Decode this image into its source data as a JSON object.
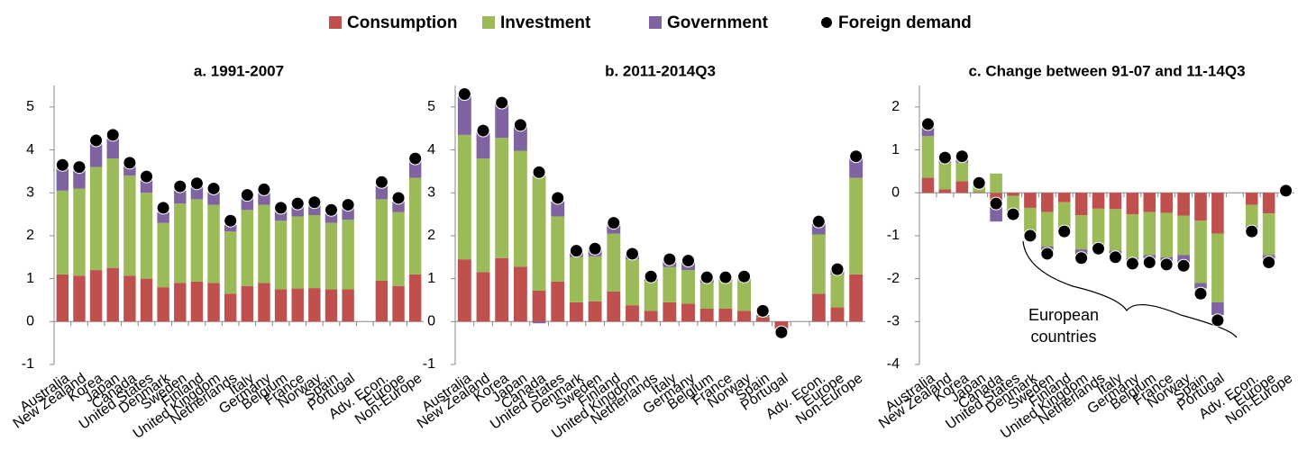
{
  "chart_data": [
    {
      "type": "bar",
      "stacked": true,
      "title": "a. 1991-2007",
      "categories": [
        "Australia",
        "New Zealand",
        "Korea",
        "Japan",
        "Canada",
        "United States",
        "Denmark",
        "Sweden",
        "Finland",
        "United Kingdom",
        "Netherlands",
        "Italy",
        "Germany",
        "Belgium",
        "France",
        "Norway",
        "Spain",
        "Portugal",
        null,
        "Adv. Econ.",
        "Europe",
        "Non-Europe"
      ],
      "ylim": [
        -1,
        5.5
      ],
      "yticks": [
        -1,
        0,
        1,
        2,
        3,
        4,
        5
      ],
      "series": [
        {
          "name": "Consumption",
          "color": "#c0504d",
          "values": [
            1.1,
            1.07,
            1.2,
            1.25,
            1.07,
            1.0,
            0.8,
            0.9,
            0.93,
            0.9,
            0.65,
            0.83,
            0.9,
            0.75,
            0.77,
            0.78,
            0.75,
            0.75,
            null,
            0.95,
            0.83,
            1.1
          ]
        },
        {
          "name": "Investment",
          "color": "#9bbb59",
          "values": [
            1.95,
            2.03,
            2.4,
            2.55,
            2.33,
            2.0,
            1.5,
            1.85,
            1.92,
            1.82,
            1.45,
            1.77,
            1.82,
            1.6,
            1.68,
            1.7,
            1.55,
            1.62,
            null,
            1.9,
            1.72,
            2.25
          ]
        },
        {
          "name": "Government",
          "color": "#8064a2",
          "values": [
            0.6,
            0.5,
            0.6,
            0.5,
            0.25,
            0.3,
            0.25,
            0.3,
            0.3,
            0.3,
            0.15,
            0.3,
            0.28,
            0.25,
            0.25,
            0.25,
            0.22,
            0.28,
            null,
            0.3,
            0.25,
            0.4
          ]
        },
        {
          "name": "Foreign demand",
          "color": "#000000",
          "type": "dot",
          "values": [
            3.65,
            3.6,
            4.22,
            4.35,
            3.7,
            3.38,
            2.65,
            3.15,
            3.22,
            3.1,
            2.35,
            2.95,
            3.08,
            2.65,
            2.75,
            2.78,
            2.6,
            2.72,
            null,
            3.25,
            2.88,
            3.8
          ]
        }
      ]
    },
    {
      "type": "bar",
      "stacked": true,
      "title": "b. 2011-2014Q3",
      "categories": [
        "Australia",
        "New Zealand",
        "Korea",
        "Japan",
        "Canada",
        "United States",
        "Denmark",
        "Sweden",
        "Finland",
        "United Kingdom",
        "Netherlands",
        "Italy",
        "Germany",
        "Belgium",
        "France",
        "Norway",
        "Spain",
        "Portugal",
        null,
        "Adv. Econ.",
        "Europe",
        "Non-Europe"
      ],
      "ylim": [
        -1,
        5.5
      ],
      "yticks": [
        -1,
        0,
        1,
        2,
        3,
        4,
        5
      ],
      "series": [
        {
          "name": "Consumption",
          "color": "#c0504d",
          "values": [
            1.45,
            1.15,
            1.48,
            1.28,
            0.72,
            0.93,
            0.45,
            0.47,
            0.7,
            0.38,
            0.25,
            0.45,
            0.42,
            0.3,
            0.3,
            0.25,
            0.1,
            -0.15,
            null,
            0.65,
            0.33,
            1.1
          ]
        },
        {
          "name": "Investment",
          "color": "#9bbb59",
          "values": [
            2.9,
            2.65,
            2.8,
            2.7,
            2.68,
            1.52,
            1.05,
            1.05,
            1.35,
            1.07,
            0.7,
            0.82,
            0.78,
            0.6,
            0.65,
            0.73,
            0.02,
            -0.05,
            null,
            1.38,
            0.77,
            2.25
          ]
        },
        {
          "name": "Government",
          "color": "#8064a2",
          "values": [
            0.9,
            0.6,
            0.8,
            0.55,
            -0.04,
            0.35,
            0.1,
            0.15,
            0.2,
            0.1,
            0.05,
            0.13,
            0.2,
            0.1,
            0.05,
            0.02,
            0.03,
            0,
            null,
            0.25,
            0.1,
            0.45
          ]
        },
        {
          "name": "Foreign demand",
          "color": "#000000",
          "type": "dot",
          "values": [
            5.3,
            4.45,
            5.1,
            4.58,
            3.48,
            2.88,
            1.65,
            1.7,
            2.3,
            1.58,
            1.05,
            1.45,
            1.42,
            1.03,
            1.03,
            1.05,
            0.25,
            -0.25,
            null,
            2.33,
            1.22,
            3.85
          ]
        }
      ]
    },
    {
      "type": "bar",
      "stacked": true,
      "title": "c. Change between 91-07 and 11-14Q3",
      "categories": [
        "Australia",
        "New Zealand",
        "Korea",
        "Japan",
        "Canada",
        "United States",
        "Denmark",
        "Sweden",
        "Finland",
        "United Kingdom",
        "Netherlands",
        "Italy",
        "Germany",
        "Belgium",
        "France",
        "Norway",
        "Spain",
        "Portugal",
        null,
        "Adv. Econ.",
        "Europe",
        "Non-Europe"
      ],
      "ylim": [
        -4,
        2.5
      ],
      "yticks": [
        -4,
        -3,
        -2,
        -1,
        0,
        1,
        2
      ],
      "annotation": "European countries",
      "series": [
        {
          "name": "Consumption",
          "color": "#c0504d",
          "values": [
            0.35,
            0.08,
            0.27,
            0.02,
            -0.35,
            -0.07,
            -0.35,
            -0.45,
            -0.22,
            -0.52,
            -0.37,
            -0.38,
            -0.5,
            -0.45,
            -0.47,
            -0.53,
            -0.65,
            -0.95,
            null,
            -0.28,
            -0.48,
            0
          ]
        },
        {
          "name": "Investment",
          "color": "#9bbb59",
          "values": [
            0.97,
            0.62,
            0.43,
            0.12,
            0.45,
            -0.32,
            -0.58,
            -0.8,
            -0.58,
            -0.8,
            -0.85,
            -0.97,
            -1.02,
            -1.0,
            -1.03,
            -0.92,
            -1.45,
            -1.6,
            null,
            -0.5,
            -0.97,
            0
          ]
        },
        {
          "name": "Government",
          "color": "#8064a2",
          "values": [
            0.25,
            0.05,
            0.15,
            0.05,
            -0.32,
            -0.03,
            -0.02,
            -0.12,
            -0.05,
            -0.13,
            -0.05,
            -0.08,
            -0.05,
            -0.08,
            -0.1,
            -0.17,
            -0.13,
            -0.3,
            null,
            -0.05,
            -0.1,
            0
          ]
        },
        {
          "name": "Foreign demand",
          "color": "#000000",
          "type": "dot",
          "values": [
            1.6,
            0.82,
            0.85,
            0.23,
            -0.25,
            -0.5,
            -1.0,
            -1.42,
            -0.9,
            -1.52,
            -1.3,
            -1.5,
            -1.65,
            -1.62,
            -1.67,
            -1.7,
            -2.35,
            -2.97,
            null,
            -0.9,
            -1.62,
            0.05
          ]
        }
      ]
    }
  ]
}
